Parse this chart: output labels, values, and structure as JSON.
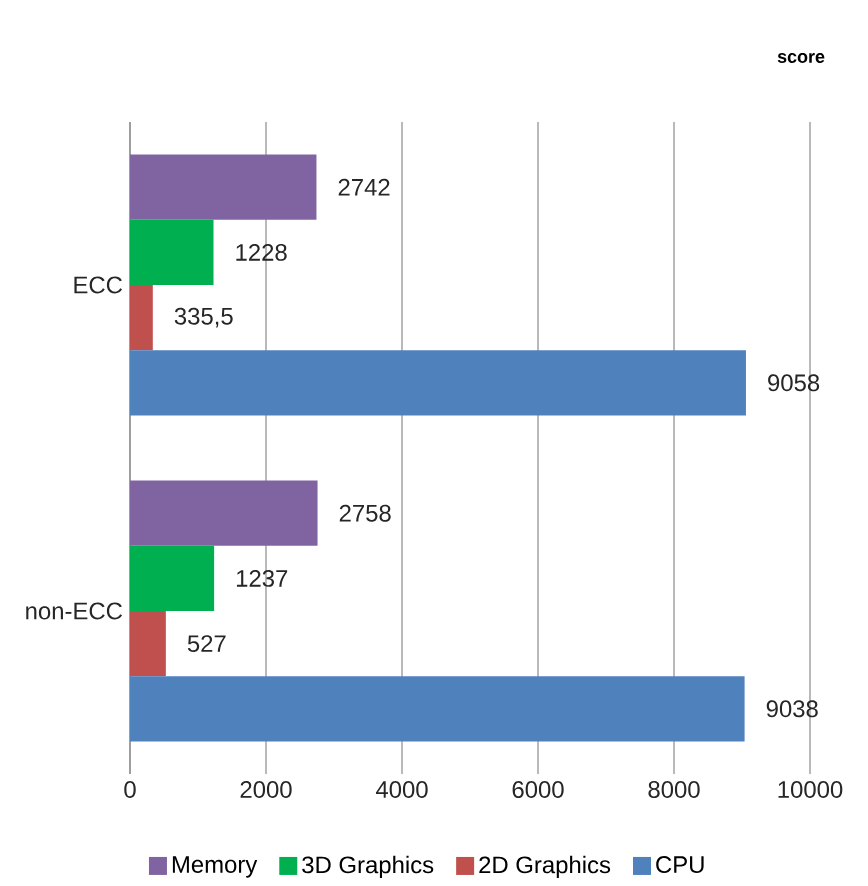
{
  "chart_data": {
    "type": "bar",
    "orientation": "horizontal",
    "subtitle": "score",
    "categories": [
      "ECC",
      "non-ECC"
    ],
    "series": [
      {
        "name": "Memory",
        "color": "#8064a2",
        "values": [
          2742,
          2758
        ],
        "value_labels": [
          "2742",
          "2758"
        ]
      },
      {
        "name": "3D Graphics",
        "color": "#00b050",
        "values": [
          1228,
          1237
        ],
        "value_labels": [
          "1228",
          "1237"
        ]
      },
      {
        "name": "2D Graphics",
        "color": "#c0504d",
        "values": [
          335.5,
          527
        ],
        "value_labels": [
          "335,5",
          "527"
        ]
      },
      {
        "name": "CPU",
        "color": "#4f81bd",
        "values": [
          9058,
          9038
        ],
        "value_labels": [
          "9058",
          "9038"
        ]
      }
    ],
    "xlim": [
      0,
      10000
    ],
    "xticks": [
      0,
      2000,
      4000,
      6000,
      8000,
      10000
    ],
    "grid": "x",
    "legend": "bottom"
  }
}
